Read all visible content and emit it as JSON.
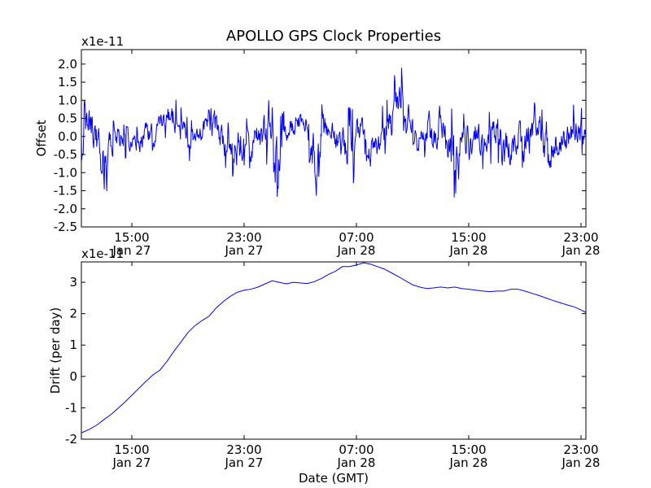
{
  "chart_data": [
    {
      "type": "line",
      "title": "APOLLO GPS Clock Properties",
      "xlabel": "",
      "ylabel": "Offset",
      "y_exponent_label": "x1e-11",
      "color": "#0000ff",
      "xlim_hours": [
        11.0,
        35.5
      ],
      "ylim": [
        -2.5,
        2.4
      ],
      "yticks": [
        {
          "value": 2.0,
          "label": "2.0"
        },
        {
          "value": 1.5,
          "label": "1.5"
        },
        {
          "value": 1.0,
          "label": "1.0"
        },
        {
          "value": 0.5,
          "label": "0.5"
        },
        {
          "value": 0.0,
          "label": "0.0"
        },
        {
          "value": -0.5,
          "label": "-0.5"
        },
        {
          "value": -1.0,
          "label": "-1.0"
        },
        {
          "value": -1.5,
          "label": "-1.5"
        },
        {
          "value": -2.0,
          "label": "-2.0"
        },
        {
          "value": -2.5,
          "label": "-2.5"
        }
      ],
      "xticks": [
        {
          "hour": 15,
          "time": "15:00",
          "date": "Jan 27"
        },
        {
          "hour": 23,
          "time": "23:00",
          "date": "Jan 27"
        },
        {
          "hour": 31,
          "time": "07:00",
          "date": "Jan 28"
        },
        {
          "hour": 39,
          "time": "15:00",
          "date": "Jan 28"
        },
        {
          "hour": 47,
          "time": "23:00",
          "date": "Jan 28"
        }
      ],
      "series": [
        {
          "name": "offset",
          "note": "envelope samples (hour, min, max) of a dense noisy trace",
          "samples": [
            [
              11.0,
              -1.0,
              0.3
            ],
            [
              11.5,
              -0.6,
              0.9
            ],
            [
              12.0,
              -0.5,
              1.2
            ],
            [
              12.5,
              -0.9,
              0.6
            ],
            [
              13.0,
              -2.05,
              0.7
            ],
            [
              13.5,
              -0.8,
              0.4
            ],
            [
              14.0,
              -0.5,
              0.5
            ],
            [
              14.5,
              -0.6,
              0.3
            ],
            [
              15.0,
              -0.5,
              0.2
            ],
            [
              15.5,
              -0.7,
              0.3
            ],
            [
              16.0,
              -0.3,
              0.6
            ],
            [
              16.5,
              -0.4,
              0.3
            ],
            [
              17.0,
              -0.2,
              0.8
            ],
            [
              17.5,
              0.0,
              1.35
            ],
            [
              18.0,
              -0.3,
              1.1
            ],
            [
              18.5,
              -0.4,
              0.8
            ],
            [
              19.0,
              -0.7,
              0.5
            ],
            [
              19.5,
              -0.6,
              0.4
            ],
            [
              20.0,
              -0.3,
              0.6
            ],
            [
              20.5,
              -0.5,
              1.3
            ],
            [
              21.0,
              -0.4,
              0.9
            ],
            [
              21.5,
              -0.8,
              0.6
            ],
            [
              22.0,
              -1.0,
              0.3
            ],
            [
              22.5,
              -1.3,
              0.6
            ],
            [
              23.0,
              -0.8,
              0.5
            ],
            [
              23.5,
              -0.9,
              0.5
            ],
            [
              24.0,
              -0.6,
              0.7
            ],
            [
              24.5,
              -0.8,
              1.2
            ],
            [
              25.0,
              -0.7,
              0.8
            ],
            [
              25.5,
              -2.05,
              0.5
            ],
            [
              26.0,
              -0.5,
              0.8
            ],
            [
              26.5,
              -0.2,
              1.0
            ],
            [
              27.0,
              0.0,
              0.9
            ],
            [
              27.5,
              -0.2,
              1.0
            ],
            [
              28.0,
              -2.05,
              0.8
            ],
            [
              28.5,
              -0.6,
              0.9
            ],
            [
              29.0,
              -0.5,
              0.7
            ],
            [
              29.5,
              -0.7,
              0.5
            ],
            [
              30.0,
              -1.1,
              0.7
            ],
            [
              30.5,
              -2.35,
              0.8
            ],
            [
              31.0,
              -0.5,
              0.7
            ],
            [
              31.5,
              -0.3,
              0.8
            ],
            [
              32.0,
              -1.2,
              0.3
            ],
            [
              32.5,
              -0.9,
              0.7
            ],
            [
              33.0,
              -0.5,
              0.9
            ],
            [
              33.5,
              -0.3,
              1.2
            ],
            [
              34.0,
              0.3,
              2.35
            ],
            [
              34.5,
              0.1,
              1.3
            ],
            [
              35.0,
              -0.2,
              0.9
            ],
            [
              35.5,
              -0.5,
              0.6
            ],
            [
              36.0,
              -0.6,
              1.0
            ],
            [
              36.5,
              -0.8,
              0.9
            ],
            [
              37.0,
              -0.5,
              1.2
            ],
            [
              37.5,
              -1.5,
              0.6
            ],
            [
              38.0,
              -1.7,
              0.9
            ],
            [
              38.5,
              -0.8,
              0.6
            ],
            [
              39.0,
              -1.0,
              0.7
            ],
            [
              39.5,
              -0.6,
              0.8
            ],
            [
              40.0,
              -0.9,
              0.4
            ],
            [
              40.5,
              -0.8,
              0.7
            ],
            [
              41.0,
              -0.5,
              0.9
            ],
            [
              41.5,
              -1.6,
              0.7
            ],
            [
              42.0,
              -1.0,
              0.8
            ],
            [
              42.5,
              -0.8,
              0.7
            ],
            [
              43.0,
              -0.9,
              0.6
            ],
            [
              43.5,
              -0.8,
              0.9
            ],
            [
              44.0,
              -0.6,
              1.0
            ],
            [
              44.5,
              -1.85,
              0.4
            ],
            [
              45.0,
              -1.3,
              0.6
            ],
            [
              45.5,
              -0.9,
              0.7
            ],
            [
              46.0,
              -0.6,
              0.6
            ],
            [
              46.5,
              -0.8,
              0.9
            ],
            [
              47.0,
              -0.5,
              0.8
            ],
            [
              47.5,
              -0.4,
              0.6
            ]
          ]
        }
      ]
    },
    {
      "type": "line",
      "title": "",
      "xlabel": "Date (GMT)",
      "ylabel": "Drift (per day)",
      "y_exponent_label": "x1e-11",
      "color": "#0000ff",
      "ylim": [
        -2.0,
        3.65
      ],
      "yticks": [
        {
          "value": 3,
          "label": "3"
        },
        {
          "value": 2,
          "label": "2"
        },
        {
          "value": 1,
          "label": "1"
        },
        {
          "value": 0,
          "label": "0"
        },
        {
          "value": -1,
          "label": "-1"
        },
        {
          "value": -2,
          "label": "-2"
        }
      ],
      "xticks": [
        {
          "hour": 15,
          "time": "15:00",
          "date": "Jan 27"
        },
        {
          "hour": 23,
          "time": "23:00",
          "date": "Jan 27"
        },
        {
          "hour": 31,
          "time": "07:00",
          "date": "Jan 28"
        },
        {
          "hour": 39,
          "time": "15:00",
          "date": "Jan 28"
        },
        {
          "hour": 47,
          "time": "23:00",
          "date": "Jan 28"
        }
      ],
      "series": [
        {
          "name": "drift",
          "points": [
            [
              11.0,
              -1.85
            ],
            [
              11.5,
              -1.78
            ],
            [
              12.0,
              -1.68
            ],
            [
              12.5,
              -1.55
            ],
            [
              13.0,
              -1.38
            ],
            [
              13.5,
              -1.22
            ],
            [
              14.0,
              -1.02
            ],
            [
              14.5,
              -0.82
            ],
            [
              15.0,
              -0.6
            ],
            [
              15.5,
              -0.38
            ],
            [
              16.0,
              -0.16
            ],
            [
              16.5,
              0.05
            ],
            [
              17.0,
              0.2
            ],
            [
              17.5,
              0.48
            ],
            [
              18.0,
              0.8
            ],
            [
              18.5,
              1.1
            ],
            [
              19.0,
              1.4
            ],
            [
              19.5,
              1.62
            ],
            [
              20.0,
              1.78
            ],
            [
              20.5,
              1.92
            ],
            [
              21.0,
              2.18
            ],
            [
              21.5,
              2.38
            ],
            [
              22.0,
              2.55
            ],
            [
              22.5,
              2.68
            ],
            [
              23.0,
              2.75
            ],
            [
              23.5,
              2.78
            ],
            [
              24.0,
              2.85
            ],
            [
              24.5,
              2.95
            ],
            [
              25.0,
              3.05
            ],
            [
              25.5,
              3.0
            ],
            [
              26.0,
              2.95
            ],
            [
              26.5,
              3.0
            ],
            [
              27.0,
              2.98
            ],
            [
              27.5,
              2.96
            ],
            [
              28.0,
              3.02
            ],
            [
              28.5,
              3.12
            ],
            [
              29.0,
              3.25
            ],
            [
              29.5,
              3.35
            ],
            [
              30.0,
              3.5
            ],
            [
              30.5,
              3.5
            ],
            [
              31.0,
              3.55
            ],
            [
              31.5,
              3.62
            ],
            [
              32.0,
              3.58
            ],
            [
              32.5,
              3.5
            ],
            [
              33.0,
              3.42
            ],
            [
              33.5,
              3.3
            ],
            [
              34.0,
              3.18
            ],
            [
              34.5,
              3.05
            ],
            [
              35.0,
              2.92
            ],
            [
              35.5,
              2.85
            ],
            [
              36.0,
              2.8
            ],
            [
              36.5,
              2.82
            ],
            [
              37.0,
              2.85
            ],
            [
              37.5,
              2.82
            ],
            [
              38.0,
              2.85
            ],
            [
              38.5,
              2.8
            ],
            [
              39.0,
              2.78
            ],
            [
              39.5,
              2.75
            ],
            [
              40.0,
              2.72
            ],
            [
              40.5,
              2.7
            ],
            [
              41.0,
              2.72
            ],
            [
              41.5,
              2.72
            ],
            [
              42.0,
              2.78
            ],
            [
              42.5,
              2.78
            ],
            [
              43.0,
              2.72
            ],
            [
              43.5,
              2.65
            ],
            [
              44.0,
              2.58
            ],
            [
              44.5,
              2.5
            ],
            [
              45.0,
              2.42
            ],
            [
              45.5,
              2.35
            ],
            [
              46.0,
              2.28
            ],
            [
              46.5,
              2.22
            ],
            [
              47.0,
              2.12
            ],
            [
              47.5,
              2.0
            ],
            [
              48.0,
              1.85
            ],
            [
              48.5,
              1.65
            ],
            [
              49.0,
              1.42
            ],
            [
              49.5,
              1.18
            ],
            [
              50.0,
              0.98
            ]
          ]
        }
      ]
    }
  ]
}
